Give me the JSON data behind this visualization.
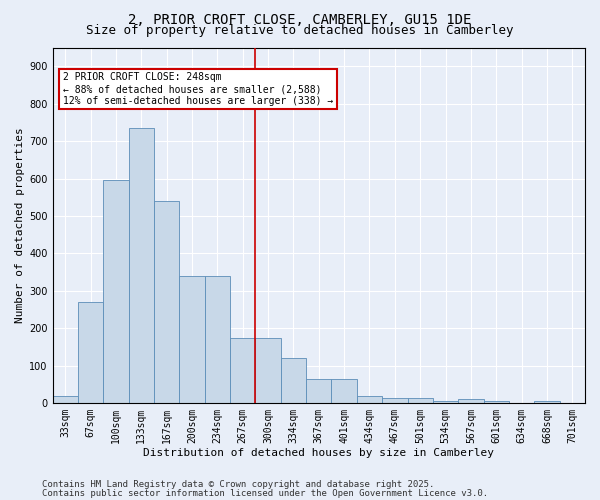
{
  "title1": "2, PRIOR CROFT CLOSE, CAMBERLEY, GU15 1DE",
  "title2": "Size of property relative to detached houses in Camberley",
  "xlabel": "Distribution of detached houses by size in Camberley",
  "ylabel": "Number of detached properties",
  "categories": [
    "33sqm",
    "67sqm",
    "100sqm",
    "133sqm",
    "167sqm",
    "200sqm",
    "234sqm",
    "267sqm",
    "300sqm",
    "334sqm",
    "367sqm",
    "401sqm",
    "434sqm",
    "467sqm",
    "501sqm",
    "534sqm",
    "567sqm",
    "601sqm",
    "634sqm",
    "668sqm",
    "701sqm"
  ],
  "values": [
    20,
    270,
    595,
    735,
    540,
    340,
    340,
    175,
    175,
    120,
    65,
    65,
    20,
    15,
    15,
    5,
    10,
    5,
    0,
    5,
    0
  ],
  "bar_color": "#c8d8e8",
  "bar_edge_color": "#5b8db8",
  "vline_x_idx": 7,
  "vline_color": "#cc0000",
  "annotation_text": "2 PRIOR CROFT CLOSE: 248sqm\n← 88% of detached houses are smaller (2,588)\n12% of semi-detached houses are larger (338) →",
  "annotation_box_color": "#ffffff",
  "annotation_box_edge": "#cc0000",
  "footnote1": "Contains HM Land Registry data © Crown copyright and database right 2025.",
  "footnote2": "Contains public sector information licensed under the Open Government Licence v3.0.",
  "bg_color": "#e8eef8",
  "plot_bg_color": "#e8eef8",
  "grid_color": "#ffffff",
  "ylim": [
    0,
    950
  ],
  "yticks": [
    0,
    100,
    200,
    300,
    400,
    500,
    600,
    700,
    800,
    900
  ],
  "title1_fontsize": 10,
  "title2_fontsize": 9,
  "axis_label_fontsize": 8,
  "tick_fontsize": 7,
  "annotation_fontsize": 7,
  "footnote_fontsize": 6.5
}
